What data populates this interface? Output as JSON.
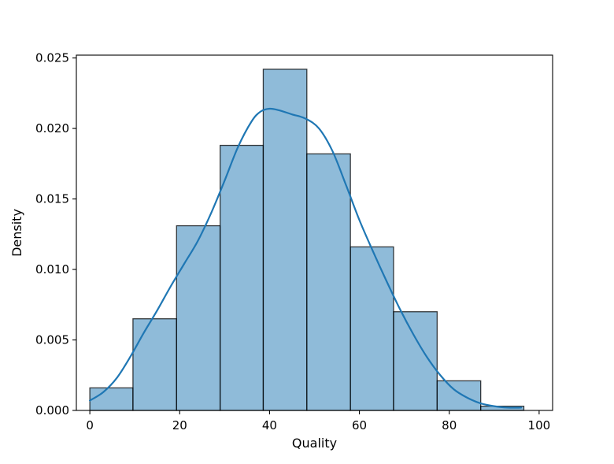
{
  "chart_data": {
    "type": "bar",
    "title": "",
    "xlabel": "Quality",
    "ylabel": "Density",
    "xlim": [
      -3,
      103
    ],
    "ylim": [
      0,
      0.0252
    ],
    "xticks": [
      0,
      20,
      40,
      60,
      80,
      100
    ],
    "xtick_labels": [
      "0",
      "20",
      "40",
      "60",
      "80",
      "100"
    ],
    "yticks": [
      0.0,
      0.005,
      0.01,
      0.015,
      0.02,
      0.025
    ],
    "ytick_labels": [
      "0.000",
      "0.005",
      "0.010",
      "0.015",
      "0.020",
      "0.025"
    ],
    "grid": false,
    "bins": [
      {
        "x0": 0.0,
        "x1": 9.6,
        "density": 0.0016
      },
      {
        "x0": 9.6,
        "x1": 19.3,
        "density": 0.0065
      },
      {
        "x0": 19.3,
        "x1": 29.0,
        "density": 0.0131
      },
      {
        "x0": 29.0,
        "x1": 38.6,
        "density": 0.0188
      },
      {
        "x0": 38.6,
        "x1": 48.3,
        "density": 0.0242
      },
      {
        "x0": 48.3,
        "x1": 58.0,
        "density": 0.0182
      },
      {
        "x0": 58.0,
        "x1": 67.6,
        "density": 0.0116
      },
      {
        "x0": 67.6,
        "x1": 77.3,
        "density": 0.007
      },
      {
        "x0": 77.3,
        "x1": 87.0,
        "density": 0.0021
      },
      {
        "x0": 87.0,
        "x1": 96.6,
        "density": 0.0003
      }
    ],
    "kde": {
      "x": [
        0,
        3,
        6,
        9,
        12,
        15,
        18,
        21,
        24,
        27,
        30,
        33,
        36,
        38,
        40,
        42,
        45,
        48,
        51,
        54,
        57,
        60,
        63,
        66,
        69,
        72,
        75,
        78,
        81,
        84,
        87,
        90,
        93,
        96
      ],
      "y": [
        0.0007,
        0.0013,
        0.0023,
        0.0038,
        0.0055,
        0.0071,
        0.0088,
        0.0104,
        0.012,
        0.014,
        0.0163,
        0.0187,
        0.0205,
        0.0212,
        0.0214,
        0.0213,
        0.021,
        0.0207,
        0.02,
        0.0184,
        0.016,
        0.0135,
        0.0113,
        0.0092,
        0.0072,
        0.0054,
        0.0038,
        0.0025,
        0.0015,
        0.0009,
        0.0005,
        0.0003,
        0.0002,
        0.0002
      ],
      "color": "#1f77b4"
    },
    "bar_color": "#1f77b4",
    "edge_color": "#000000"
  }
}
